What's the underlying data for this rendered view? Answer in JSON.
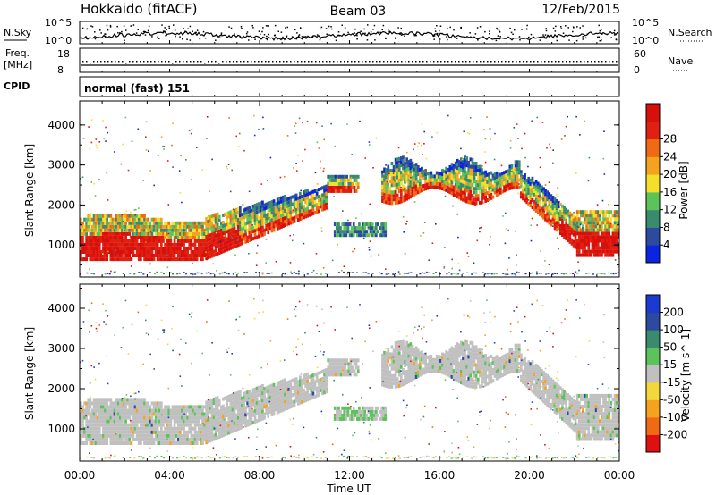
{
  "header": {
    "station": "Hokkaido (fitACF)",
    "beam": "Beam 03",
    "date": "12/Feb/2015"
  },
  "panels": {
    "nsky_label": "N.Sky",
    "nsky_ticks": [
      "10^5",
      "10^0"
    ],
    "nsearch_label": "N.Search",
    "nsearch_ticks": [
      "10^5",
      "10^0"
    ],
    "freq_label": "Freq.",
    "freq_unit": "[MHz]",
    "freq_ticks": [
      "18",
      "8"
    ],
    "nave_label": "Nave",
    "nave_ticks": [
      "60",
      "0"
    ],
    "cpid_label": "CPID",
    "cpid_value": "normal (fast) 151"
  },
  "colors": {
    "power_scale": [
      "#0a24e0",
      "#2c4aa0",
      "#3a8a6e",
      "#5cc35a",
      "#f2e02a",
      "#f5a21e",
      "#ef6a12",
      "#e02010",
      "#d8100c"
    ],
    "velocity_scale": [
      "#e01010",
      "#ef6a12",
      "#f5a21e",
      "#f2d83a",
      "#c0c0c0",
      "#5cc35a",
      "#3a8a6e",
      "#2c4aa0",
      "#1a3ad0"
    ],
    "ground_scatter": "#c0c0c0"
  },
  "chart_data": [
    {
      "type": "heatmap",
      "name": "power",
      "ylabel": "Slant Range [km]",
      "yticks": [
        "1000",
        "2000",
        "3000",
        "4000"
      ],
      "ylim": [
        200,
        4600
      ],
      "xlim": [
        "00:00",
        "24:00"
      ],
      "colorbar_label": "Power [dB]",
      "colorbar_ticks": [
        "4",
        "8",
        "12",
        "16",
        "20",
        "24",
        "28"
      ],
      "colorbar_range": [
        0,
        32
      ]
    },
    {
      "type": "heatmap",
      "name": "velocity",
      "ylabel": "Slant Range [km]",
      "yticks": [
        "1000",
        "2000",
        "3000",
        "4000"
      ],
      "ylim": [
        200,
        4600
      ],
      "xlabel": "Time UT",
      "xticks": [
        "00:00",
        "04:00",
        "08:00",
        "12:00",
        "16:00",
        "20:00",
        "00:00"
      ],
      "colorbar_label": "Velocity [m s^-1]",
      "colorbar_ticks": [
        "200",
        "100",
        "50",
        "15",
        "-15",
        "-50",
        "-100",
        "-200"
      ]
    }
  ]
}
